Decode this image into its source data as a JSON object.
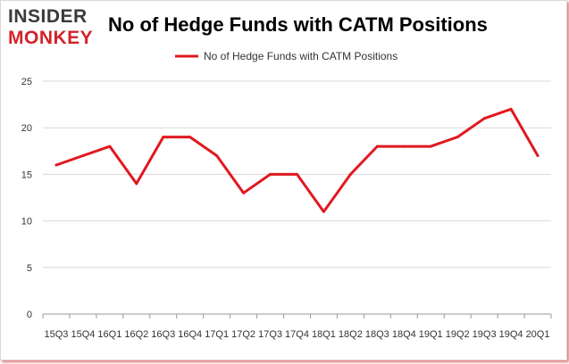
{
  "logo": {
    "line1": "INSIDER",
    "line2": "MONKEY"
  },
  "colors": {
    "series": "#e0191f",
    "logo_dark": "#3a3a3a",
    "logo_red": "#d2232a",
    "grid": "#d9d9d9"
  },
  "chart_data": {
    "type": "line",
    "title": "No of Hedge Funds with CATM Positions",
    "legend_position": "top",
    "grid": true,
    "xlabel": "",
    "ylabel": "",
    "ylim": [
      0,
      25
    ],
    "yticks": [
      "0",
      "5",
      "10",
      "15",
      "20",
      "25"
    ],
    "categories": [
      "15Q3",
      "15Q4",
      "16Q1",
      "16Q2",
      "16Q3",
      "16Q4",
      "17Q1",
      "17Q2",
      "17Q3",
      "17Q4",
      "18Q1",
      "18Q2",
      "18Q3",
      "18Q4",
      "19Q1",
      "19Q2",
      "19Q3",
      "19Q4",
      "20Q1"
    ],
    "series": [
      {
        "name": "No of Hedge Funds with CATM Positions",
        "values": [
          16,
          17,
          18,
          14,
          19,
          19,
          17,
          13,
          15,
          15,
          11,
          15,
          18,
          18,
          18,
          19,
          21,
          22,
          17
        ]
      }
    ]
  }
}
